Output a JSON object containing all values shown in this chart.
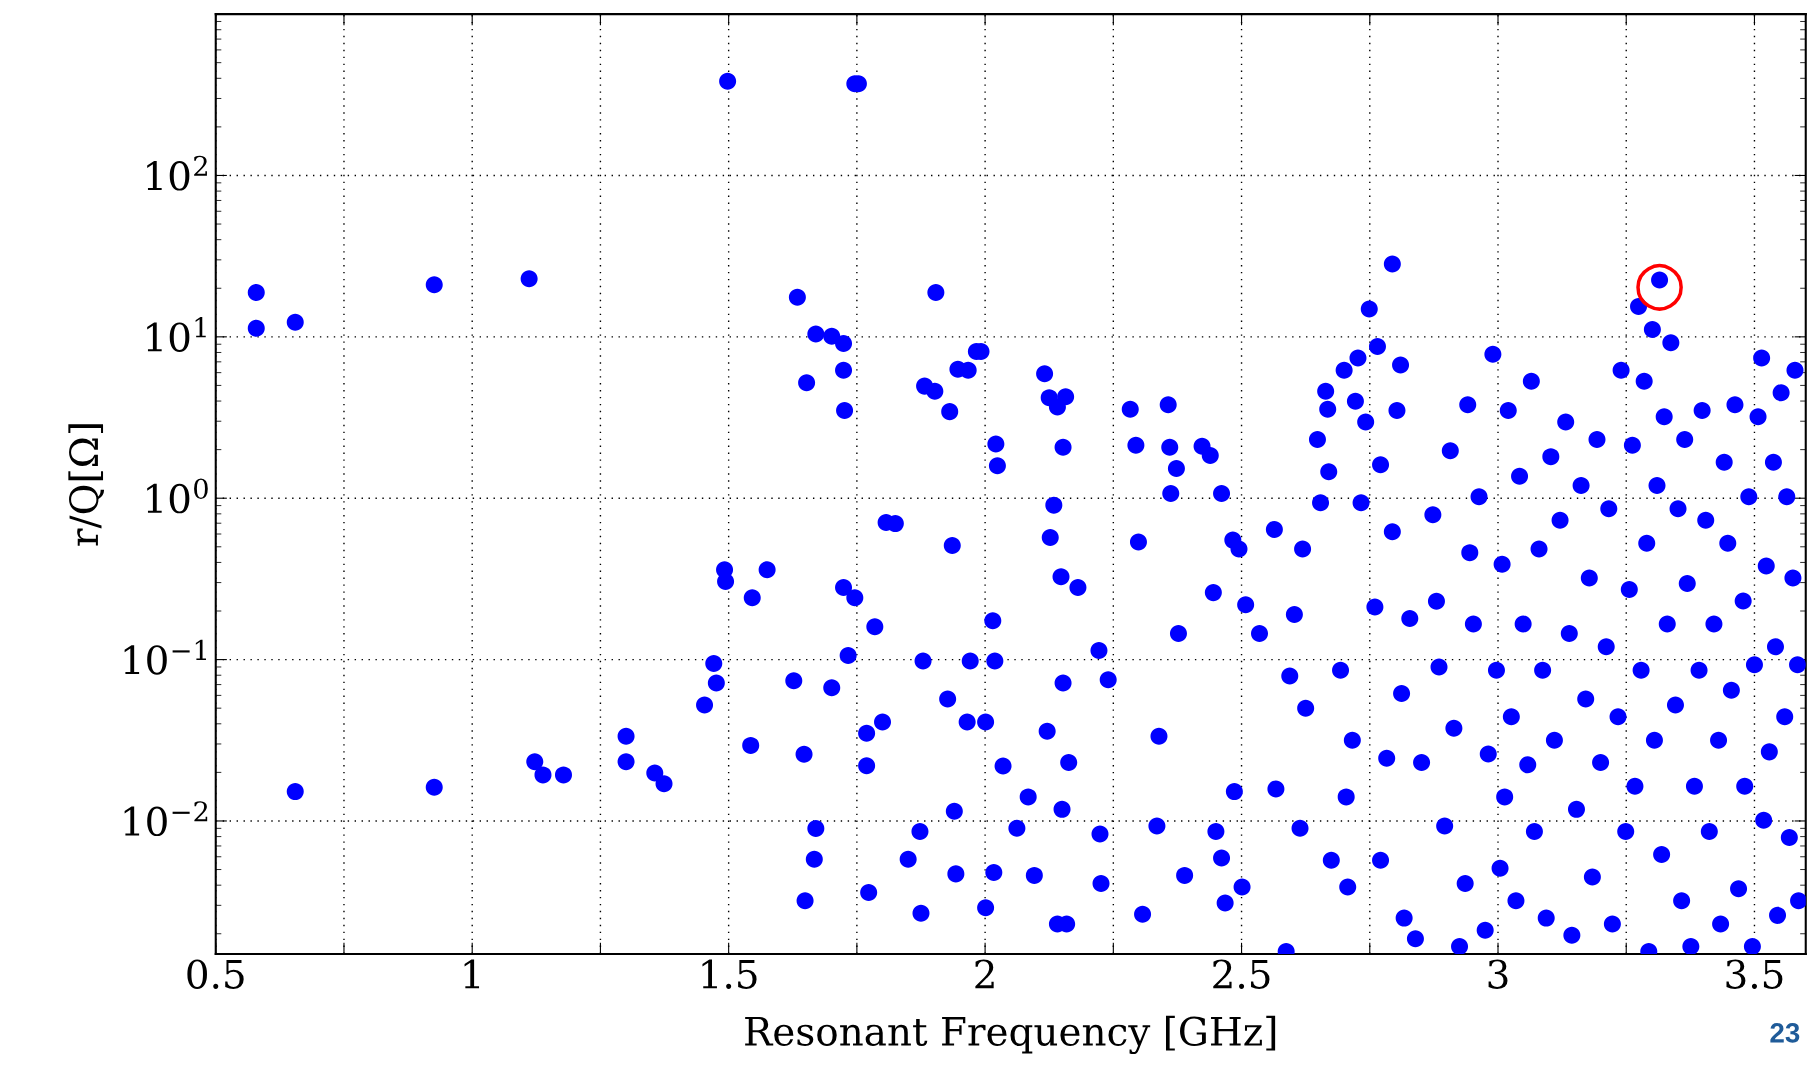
{
  "chart_data": {
    "type": "scatter",
    "xlabel": "Resonant Frequency [GHz]",
    "ylabel": "r/Q[Ω]",
    "log": "y",
    "grid": true,
    "marker": "circle",
    "xlim": [
      0.5,
      3.6
    ],
    "ylim": [
      0.0015,
      1000
    ],
    "xticks": [
      0.5,
      {
        "value": 0.75,
        "label": null
      },
      1,
      {
        "value": 1.25,
        "label": null
      },
      1.5,
      {
        "value": 1.75,
        "label": null
      },
      2,
      {
        "value": 2.25,
        "label": null
      },
      2.5,
      {
        "value": 2.75,
        "label": null
      },
      3,
      {
        "value": 3.25,
        "label": null
      },
      3.5
    ],
    "yticks": [
      {
        "value": 0.01,
        "label": "10$^{−2}$"
      },
      {
        "value": 0.1,
        "label": "10$^{−1}$"
      },
      {
        "value": 1,
        "label": "10$^{0}$"
      },
      {
        "value": 10,
        "label": "10$^{1}$"
      },
      {
        "value": 100,
        "label": "10$^{2}$"
      }
    ],
    "annotations": [
      {
        "text": "○",
        "x": 3.315,
        "y": 22.5
      },
      "23"
    ],
    "series": [
      {
        "color": "#0000ff",
        "x": [
          0.579,
          0.579,
          0.655,
          0.655,
          0.926,
          0.926,
          1.111,
          1.122,
          1.138,
          1.178,
          1.3,
          1.3,
          1.356,
          1.374,
          1.453,
          1.471,
          1.476,
          1.492,
          1.494,
          1.498,
          1.543,
          1.546,
          1.575,
          1.627,
          1.634,
          1.652,
          1.647,
          1.649,
          1.67,
          1.67,
          1.667,
          1.701,
          1.701,
          1.724,
          1.724,
          1.726,
          1.724,
          1.733,
          1.746,
          1.746,
          1.753,
          1.769,
          1.769,
          1.773,
          1.785,
          1.8,
          1.807,
          1.825,
          1.85,
          1.873,
          1.875,
          1.879,
          1.882,
          1.904,
          1.902,
          1.927,
          1.931,
          1.936,
          1.94,
          1.943,
          1.947,
          1.967,
          1.965,
          1.971,
          1.983,
          1.992,
          2.001,
          2.001,
          2.015,
          2.019,
          2.021,
          2.024,
          2.017,
          2.035,
          2.062,
          2.084,
          2.096,
          2.116,
          2.121,
          2.125,
          2.127,
          2.134,
          2.141,
          2.148,
          2.152,
          2.157,
          2.152,
          2.15,
          2.141,
          2.159,
          2.163,
          2.181,
          2.222,
          2.224,
          2.226,
          2.24,
          2.283,
          2.294,
          2.299,
          2.307,
          2.335,
          2.339,
          2.357,
          2.36,
          2.362,
          2.373,
          2.377,
          2.389,
          2.423,
          2.439,
          2.445,
          2.45,
          2.461,
          2.461,
          2.468,
          2.483,
          2.486,
          2.495,
          2.501,
          2.508,
          2.535,
          2.564,
          2.567,
          2.587,
          2.594,
          2.603,
          2.614,
          2.619,
          2.625,
          2.648,
          2.654,
          2.664,
          2.668,
          2.67,
          2.675,
          2.693,
          2.7,
          2.704,
          2.707,
          2.716,
          2.722,
          2.727,
          2.733,
          2.742,
          2.749,
          2.76,
          2.765,
          2.771,
          2.771,
          2.783,
          2.794,
          2.794,
          2.803,
          2.81,
          2.812,
          2.817,
          2.828,
          2.839,
          2.851,
          2.873,
          2.88,
          2.885,
          2.896,
          2.907,
          2.914,
          2.925,
          2.936,
          2.941,
          2.945,
          2.952,
          2.963,
          2.975,
          2.981,
          2.99,
          2.997,
          3.004,
          3.008,
          3.013,
          3.02,
          3.026,
          3.035,
          3.042,
          3.049,
          3.058,
          3.065,
          3.071,
          3.08,
          3.087,
          3.094,
          3.103,
          3.11,
          3.121,
          3.132,
          3.139,
          3.144,
          3.153,
          3.162,
          3.171,
          3.178,
          3.184,
          3.193,
          3.2,
          3.211,
          3.216,
          3.223,
          3.234,
          3.24,
          3.249,
          3.256,
          3.262,
          3.267,
          3.274,
          3.279,
          3.285,
          3.29,
          3.294,
          3.301,
          3.305,
          3.31,
          3.315,
          3.319,
          3.324,
          3.33,
          3.337,
          3.346,
          3.351,
          3.358,
          3.364,
          3.369,
          3.376,
          3.383,
          3.392,
          3.398,
          3.405,
          3.412,
          3.421,
          3.43,
          3.434,
          3.441,
          3.448,
          3.455,
          3.462,
          3.469,
          3.478,
          3.481,
          3.489,
          3.496,
          3.5,
          3.507,
          3.514,
          3.518,
          3.523,
          3.529,
          3.537,
          3.541,
          3.545,
          3.552,
          3.559,
          3.563,
          3.568,
          3.575,
          3.579,
          3.584,
          3.586
        ],
        "values": [
          18.8,
          11.3,
          12.3,
          0.0152,
          21,
          0.0162,
          22.9,
          0.0233,
          0.0193,
          0.0193,
          0.0335,
          0.0233,
          0.0198,
          0.017,
          0.0523,
          0.0947,
          0.0717,
          0.36,
          0.305,
          384,
          0.0294,
          0.242,
          0.36,
          0.074,
          17.6,
          5.2,
          0.0259,
          0.0032,
          0.00897,
          10.4,
          0.0058,
          10.1,
          0.067,
          9.1,
          6.2,
          3.5,
          0.28,
          0.106,
          0.242,
          370,
          370,
          0.035,
          0.022,
          0.0036,
          0.16,
          0.041,
          0.707,
          0.696,
          0.0058,
          0.0086,
          0.00268,
          0.098,
          4.95,
          18.8,
          4.6,
          0.057,
          3.44,
          0.509,
          0.0115,
          0.0047,
          6.3,
          6.2,
          0.041,
          0.098,
          8.1,
          8.1,
          0.0029,
          0.041,
          0.174,
          0.098,
          2.17,
          1.59,
          0.0048,
          0.0219,
          0.009,
          0.0141,
          0.0046,
          5.9,
          0.036,
          4.2,
          0.571,
          0.906,
          3.67,
          0.326,
          2.07,
          4.25,
          0.0717,
          0.0118,
          0.0023,
          0.0023,
          0.023,
          0.28,
          0.114,
          0.0083,
          0.0041,
          0.075,
          3.56,
          2.13,
          0.535,
          0.00264,
          0.0093,
          0.0335,
          3.8,
          2.07,
          1.07,
          1.53,
          0.145,
          0.0046,
          2.1,
          1.84,
          0.26,
          0.0086,
          0.0059,
          1.07,
          0.0031,
          0.55,
          0.0152,
          0.484,
          0.0039,
          0.219,
          0.145,
          0.64,
          0.0158,
          0.00155,
          0.079,
          0.19,
          0.009,
          0.484,
          0.0499,
          2.31,
          0.936,
          4.6,
          3.56,
          1.46,
          0.0057,
          0.086,
          6.2,
          0.0141,
          0.0039,
          0.0316,
          3.99,
          7.4,
          0.936,
          2.97,
          14.9,
          0.212,
          8.7,
          1.61,
          0.0057,
          0.0245,
          28.3,
          0.62,
          3.5,
          6.7,
          0.0617,
          0.0025,
          0.18,
          0.00186,
          0.023,
          0.79,
          0.23,
          0.09,
          0.0093,
          1.97,
          0.0375,
          0.00167,
          0.0041,
          3.8,
          0.46,
          0.166,
          1.02,
          0.0021,
          0.026,
          7.8,
          0.086,
          0.0051,
          0.39,
          0.0141,
          3.5,
          0.0443,
          0.0032,
          1.37,
          0.166,
          0.0223,
          5.3,
          0.0086,
          0.484,
          0.086,
          0.0025,
          1.81,
          0.0316,
          0.73,
          2.97,
          0.145,
          0.00196,
          0.0118,
          1.2,
          0.057,
          0.32,
          0.0045,
          2.31,
          0.023,
          0.12,
          0.86,
          0.0023,
          0.0443,
          6.2,
          0.0086,
          0.272,
          2.13,
          0.0164,
          15.4,
          0.086,
          5.3,
          0.526,
          0.00155,
          11.1,
          0.0316,
          1.2,
          22.5,
          0.0062,
          3.2,
          0.166,
          9.2,
          0.0523,
          0.86,
          0.0032,
          2.31,
          0.296,
          0.00167,
          0.0164,
          0.086,
          3.5,
          0.73,
          0.0086,
          0.166,
          0.0316,
          0.0023,
          1.67,
          0.526,
          0.0645,
          3.8,
          0.0038,
          0.231,
          0.0164,
          1.02,
          0.00167,
          0.093,
          3.2,
          7.4,
          0.0101,
          0.38,
          0.0268,
          1.67,
          0.12,
          0.0026,
          4.5,
          0.0443,
          1.02,
          0.0079,
          0.32,
          6.2,
          0.093,
          0.0032
        ]
      }
    ]
  }
}
